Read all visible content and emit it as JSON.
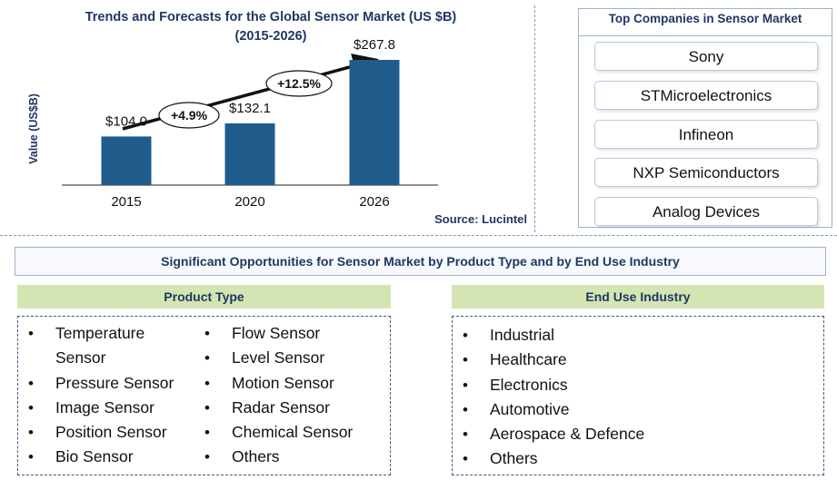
{
  "chart_data": {
    "type": "bar",
    "title": "Trends and Forecasts for the Global Sensor Market (US $B)",
    "subtitle": "(2015-2026)",
    "ylabel": "Value (US$B)",
    "xlabel": "",
    "categories": [
      "2015",
      "2020",
      "2026"
    ],
    "values": [
      104.0,
      132.1,
      267.8
    ],
    "data_labels": [
      "$104.0",
      "$132.1",
      "$267.8"
    ],
    "annotations": [
      "+4.9%",
      "+12.5%"
    ],
    "bar_color": "#1f5c8b",
    "ylim": [
      0,
      300
    ],
    "source": "Source: Lucintel"
  },
  "companies": {
    "title": "Top Companies in Sensor Market",
    "items": [
      "Sony",
      "STMicroelectronics",
      "Infineon",
      "NXP Semiconductors",
      "Analog Devices"
    ]
  },
  "opportunities": {
    "title": "Significant Opportunities for Sensor Market  by Product Type and by End Use Industry"
  },
  "product_type": {
    "title": "Product Type",
    "col1": [
      "Temperature Sensor",
      "Pressure Sensor",
      "Image Sensor",
      "Position Sensor",
      "Bio Sensor"
    ],
    "col2": [
      "Flow Sensor",
      "Level Sensor",
      "Motion Sensor",
      "Radar Sensor",
      "Chemical Sensor",
      "Others"
    ]
  },
  "end_use": {
    "title": "End Use Industry",
    "items": [
      "Industrial",
      "Healthcare",
      "Electronics",
      "Automotive",
      "Aerospace & Defence",
      "Others"
    ]
  }
}
